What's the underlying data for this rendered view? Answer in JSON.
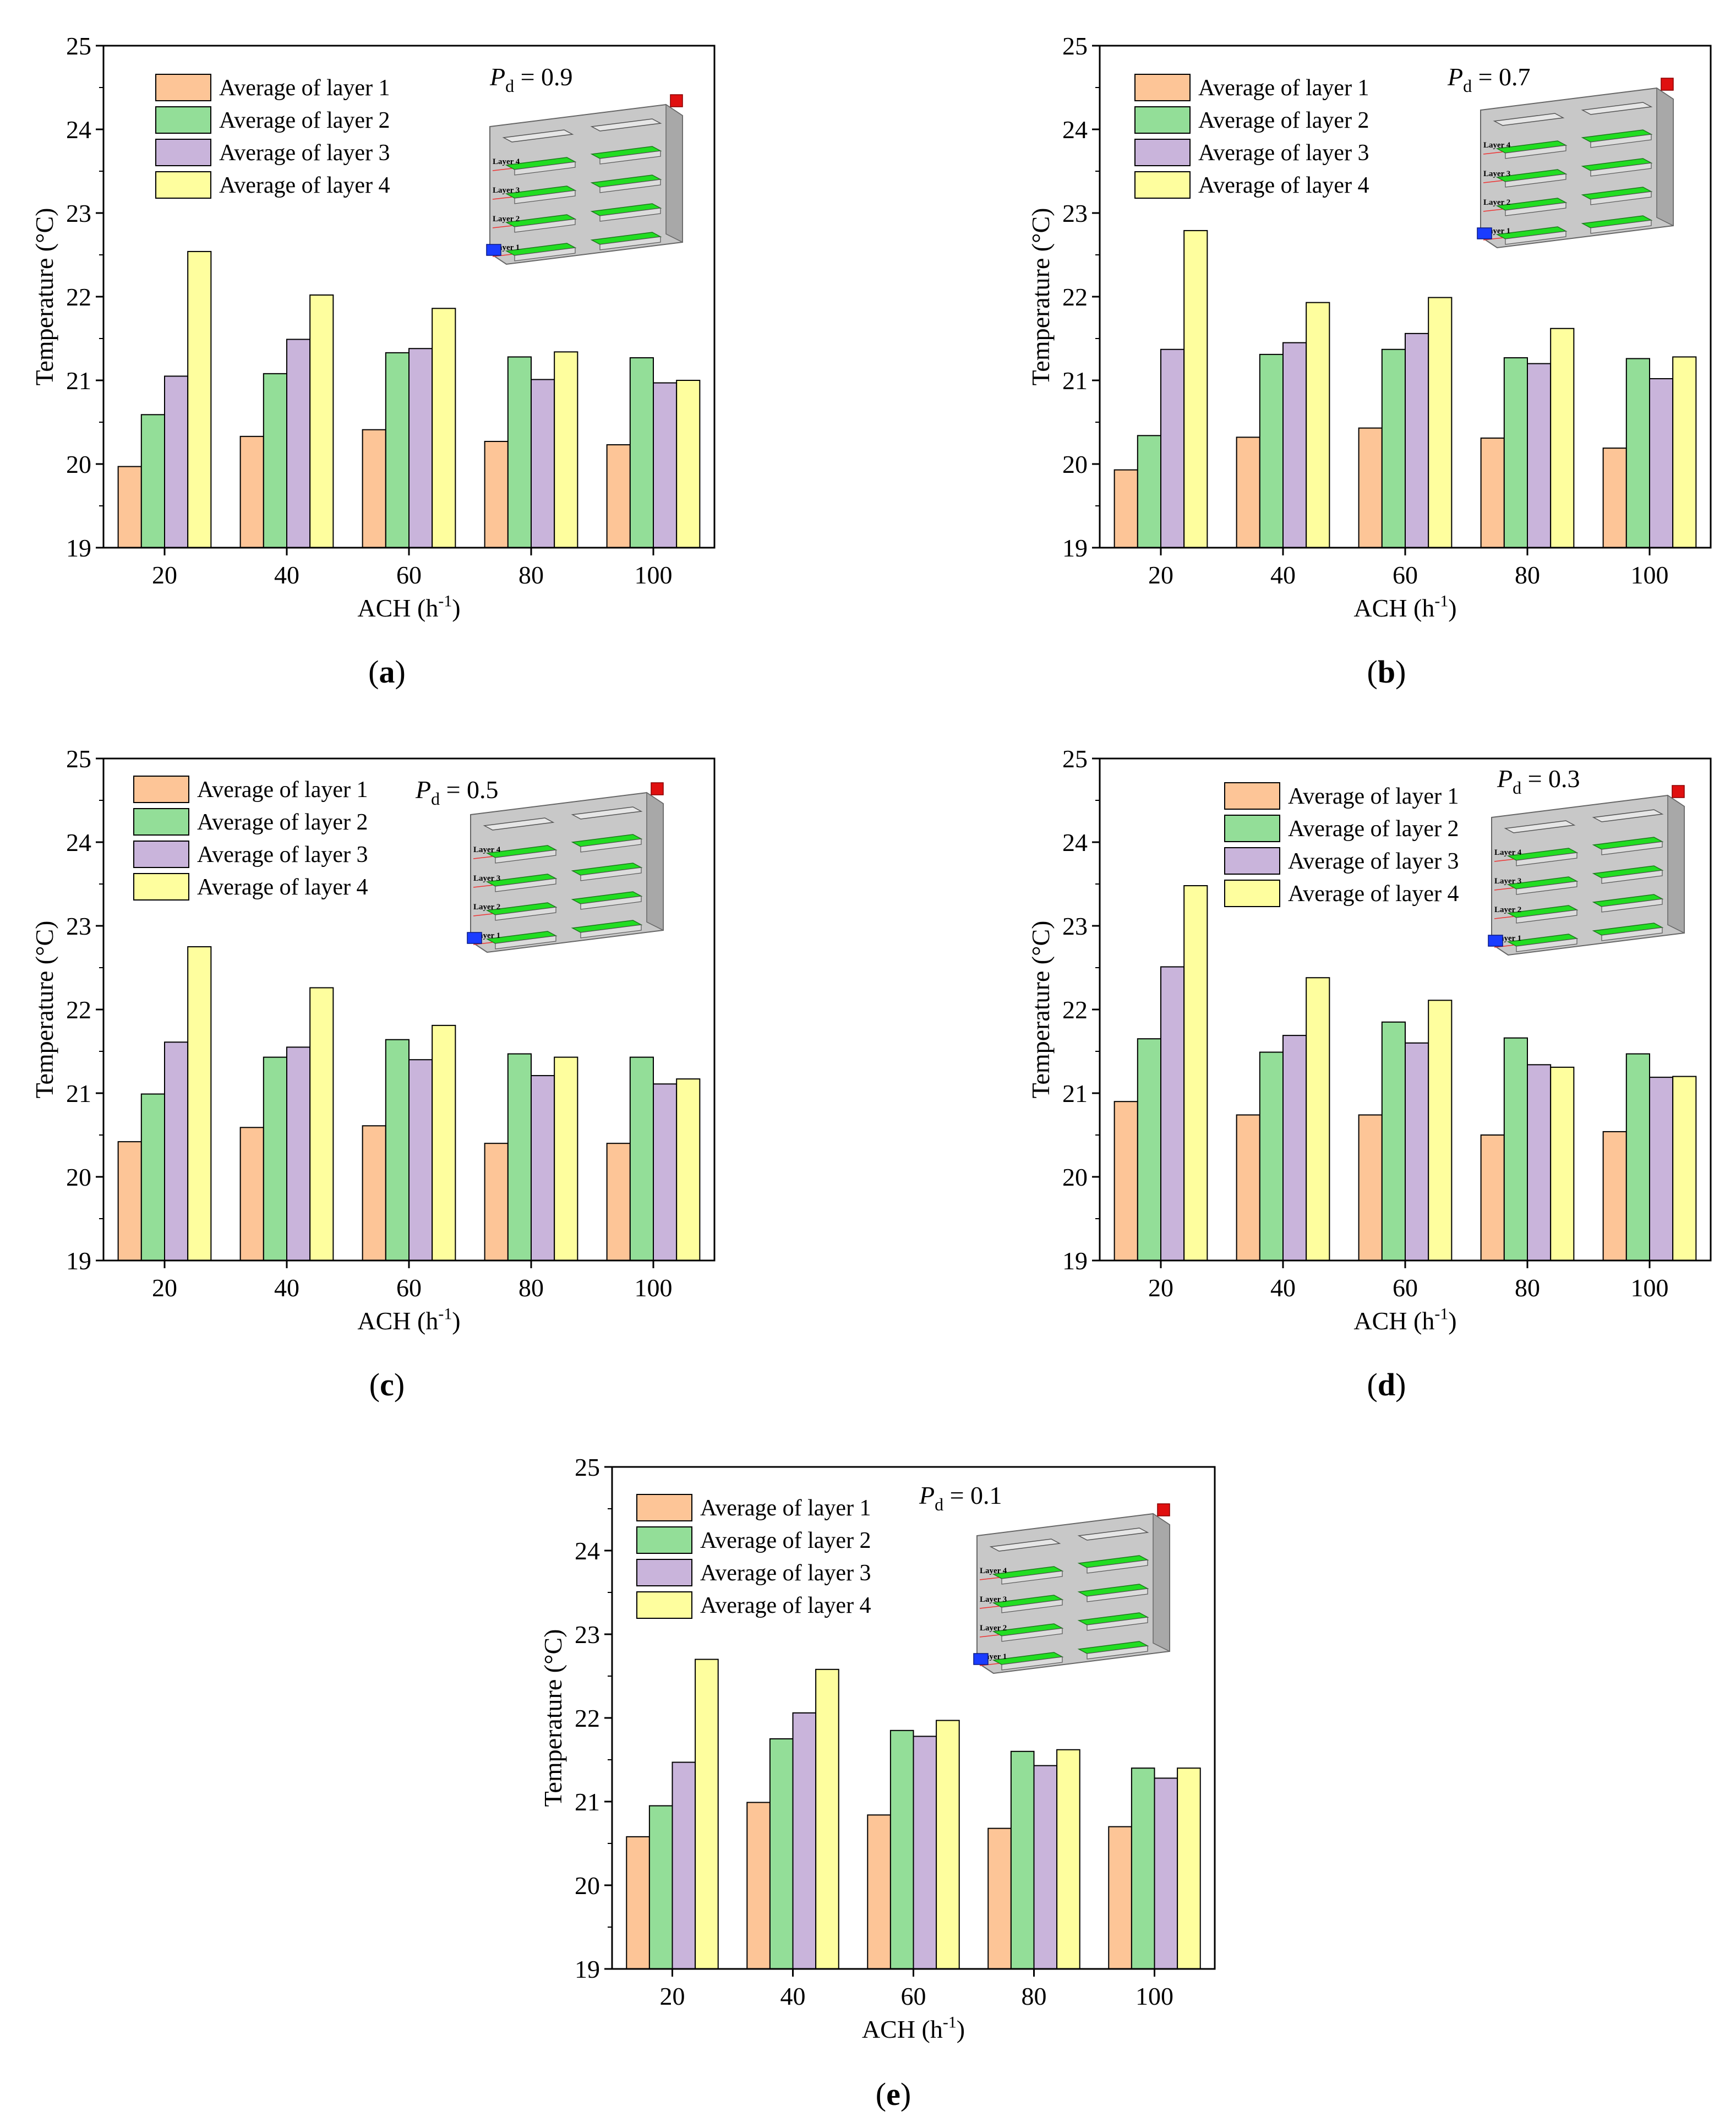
{
  "colors": {
    "layer1": "#FDC597",
    "layer2": "#93DE98",
    "layer3": "#C9B4DB",
    "layer4": "#FEFE9E",
    "axis": "#000000"
  },
  "inset_labels": [
    "Layer 4",
    "Layer 3",
    "Layer 2",
    "Layer 1"
  ],
  "chart_data": [
    {
      "type": "bar",
      "panel_label": "(a)",
      "pd_value": "0.9",
      "xlabel": "ACH (h-1)",
      "ylabel": "Temperature (°C)",
      "categories": [
        "20",
        "40",
        "60",
        "80",
        "100"
      ],
      "ylim": [
        19,
        25
      ],
      "yticks": [
        19,
        20,
        21,
        22,
        23,
        24,
        25
      ],
      "series": [
        {
          "name": "Average of layer 1",
          "values": [
            19.97,
            20.33,
            20.41,
            20.27,
            20.23
          ]
        },
        {
          "name": "Average of layer 2",
          "values": [
            20.59,
            21.08,
            21.33,
            21.28,
            21.27
          ]
        },
        {
          "name": "Average of layer 3",
          "values": [
            21.05,
            21.49,
            21.38,
            21.01,
            20.97
          ]
        },
        {
          "name": "Average of layer 4",
          "values": [
            22.54,
            22.02,
            21.86,
            21.34,
            21.0
          ]
        }
      ]
    },
    {
      "type": "bar",
      "panel_label": "(b)",
      "pd_value": "0.7",
      "xlabel": "ACH (h-1)",
      "ylabel": "Temperature (°C)",
      "categories": [
        "20",
        "40",
        "60",
        "80",
        "100"
      ],
      "ylim": [
        19,
        25
      ],
      "yticks": [
        19,
        20,
        21,
        22,
        23,
        24,
        25
      ],
      "series": [
        {
          "name": "Average of layer 1",
          "values": [
            19.93,
            20.32,
            20.43,
            20.31,
            20.19
          ]
        },
        {
          "name": "Average of layer 2",
          "values": [
            20.34,
            21.31,
            21.37,
            21.27,
            21.26
          ]
        },
        {
          "name": "Average of layer 3",
          "values": [
            21.37,
            21.45,
            21.56,
            21.2,
            21.02
          ]
        },
        {
          "name": "Average of layer 4",
          "values": [
            22.79,
            21.93,
            21.99,
            21.62,
            21.28
          ]
        }
      ]
    },
    {
      "type": "bar",
      "panel_label": "(c)",
      "pd_value": "0.5",
      "xlabel": "ACH (h-1)",
      "ylabel": "Temperature (°C)",
      "categories": [
        "20",
        "40",
        "60",
        "80",
        "100"
      ],
      "ylim": [
        19,
        25
      ],
      "yticks": [
        19,
        20,
        21,
        22,
        23,
        24,
        25
      ],
      "series": [
        {
          "name": "Average of layer 1",
          "values": [
            20.42,
            20.59,
            20.61,
            20.4,
            20.4
          ]
        },
        {
          "name": "Average of layer 2",
          "values": [
            20.99,
            21.43,
            21.64,
            21.47,
            21.43
          ]
        },
        {
          "name": "Average of layer 3",
          "values": [
            21.61,
            21.55,
            21.4,
            21.21,
            21.11
          ]
        },
        {
          "name": "Average of layer 4",
          "values": [
            22.75,
            22.26,
            21.81,
            21.43,
            21.17
          ]
        }
      ]
    },
    {
      "type": "bar",
      "panel_label": "(d)",
      "pd_value": "0.3",
      "xlabel": "ACH (h-1)",
      "ylabel": "Temperature (°C)",
      "categories": [
        "20",
        "40",
        "60",
        "80",
        "100"
      ],
      "ylim": [
        19,
        25
      ],
      "yticks": [
        19,
        20,
        21,
        22,
        23,
        24,
        25
      ],
      "series": [
        {
          "name": "Average of layer 1",
          "values": [
            20.9,
            20.74,
            20.74,
            20.5,
            20.54
          ]
        },
        {
          "name": "Average of layer 2",
          "values": [
            21.65,
            21.49,
            21.85,
            21.66,
            21.47
          ]
        },
        {
          "name": "Average of layer 3",
          "values": [
            22.51,
            21.69,
            21.6,
            21.34,
            21.19
          ]
        },
        {
          "name": "Average of layer 4",
          "values": [
            23.48,
            22.38,
            22.11,
            21.31,
            21.2
          ]
        }
      ]
    },
    {
      "type": "bar",
      "panel_label": "(e)",
      "pd_value": "0.1",
      "xlabel": "ACH (h-1)",
      "ylabel": "Temperature (°C)",
      "categories": [
        "20",
        "40",
        "60",
        "80",
        "100"
      ],
      "ylim": [
        19,
        25
      ],
      "yticks": [
        19,
        20,
        21,
        22,
        23,
        24,
        25
      ],
      "series": [
        {
          "name": "Average of layer 1",
          "values": [
            20.58,
            20.99,
            20.84,
            20.68,
            20.7
          ]
        },
        {
          "name": "Average of layer 2",
          "values": [
            20.95,
            21.75,
            21.85,
            21.6,
            21.4
          ]
        },
        {
          "name": "Average of layer 3",
          "values": [
            21.47,
            22.06,
            21.78,
            21.43,
            21.28
          ]
        },
        {
          "name": "Average of layer 4",
          "values": [
            22.7,
            22.58,
            21.97,
            21.62,
            21.4
          ]
        }
      ]
    }
  ]
}
